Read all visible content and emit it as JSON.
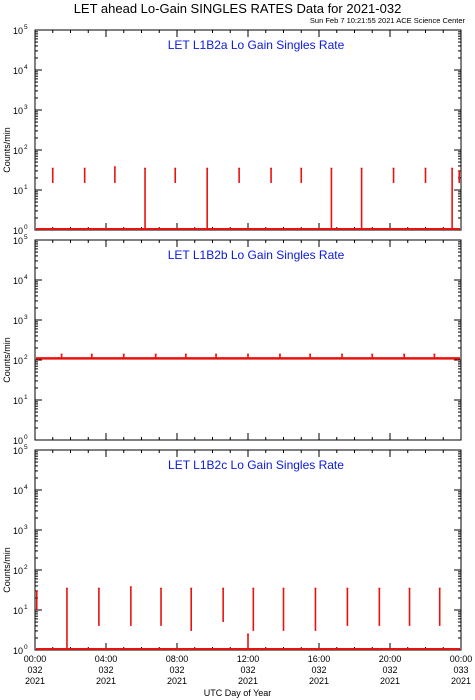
{
  "header": {
    "title": "LET ahead Lo-Gain SINGLES RATES Data for 2021-032",
    "timestamp": "Sun Feb  7 10:21:55 2021 ACE Science Center"
  },
  "colors": {
    "series": "#e8130f",
    "panel_title": "#0a1ad8",
    "axis": "#000000"
  },
  "chart_data": [
    {
      "type": "line",
      "title": "LET L1B2a Lo Gain Singles Rate",
      "ylabel": "Counts/min",
      "yscale": "log",
      "ylim": [
        1,
        100000
      ],
      "xlim": [
        0,
        24
      ],
      "baseline": 1,
      "plateau_level": 1,
      "spikes": [
        {
          "x": 1.0,
          "top": 35,
          "bottom": 15
        },
        {
          "x": 2.8,
          "top": 35,
          "bottom": 15
        },
        {
          "x": 4.5,
          "top": 38,
          "bottom": 15
        },
        {
          "x": 6.2,
          "top": 35,
          "bottom": 1
        },
        {
          "x": 7.9,
          "top": 35,
          "bottom": 15
        },
        {
          "x": 9.7,
          "top": 35,
          "bottom": 1
        },
        {
          "x": 11.5,
          "top": 35,
          "bottom": 15
        },
        {
          "x": 13.3,
          "top": 35,
          "bottom": 15
        },
        {
          "x": 15.0,
          "top": 35,
          "bottom": 15
        },
        {
          "x": 16.7,
          "top": 35,
          "bottom": 1
        },
        {
          "x": 18.4,
          "top": 35,
          "bottom": 1
        },
        {
          "x": 20.2,
          "top": 35,
          "bottom": 15
        },
        {
          "x": 22.0,
          "top": 35,
          "bottom": 15
        },
        {
          "x": 23.5,
          "top": 35,
          "bottom": 1
        },
        {
          "x": 23.9,
          "top": 30,
          "bottom": 15
        }
      ]
    },
    {
      "type": "line",
      "title": "LET L1B2b Lo Gain Singles Rate",
      "ylabel": "Counts/min",
      "yscale": "log",
      "ylim": [
        1,
        100000
      ],
      "xlim": [
        0,
        24
      ],
      "baseline": 110,
      "plateau_level": 110,
      "spikes": [
        {
          "x": 1.5,
          "top": 140,
          "bottom": 110
        },
        {
          "x": 3.2,
          "top": 140,
          "bottom": 110
        },
        {
          "x": 5.0,
          "top": 140,
          "bottom": 110
        },
        {
          "x": 6.8,
          "top": 140,
          "bottom": 110
        },
        {
          "x": 8.5,
          "top": 140,
          "bottom": 110
        },
        {
          "x": 10.2,
          "top": 140,
          "bottom": 110
        },
        {
          "x": 12.0,
          "top": 140,
          "bottom": 110
        },
        {
          "x": 13.8,
          "top": 140,
          "bottom": 110
        },
        {
          "x": 15.5,
          "top": 140,
          "bottom": 110
        },
        {
          "x": 17.3,
          "top": 140,
          "bottom": 110
        },
        {
          "x": 19.0,
          "top": 140,
          "bottom": 110
        },
        {
          "x": 20.8,
          "top": 140,
          "bottom": 110
        },
        {
          "x": 22.5,
          "top": 140,
          "bottom": 110
        }
      ]
    },
    {
      "type": "line",
      "title": "LET L1B2c Lo Gain Singles Rate",
      "ylabel": "Counts/min",
      "yscale": "log",
      "ylim": [
        1,
        100000
      ],
      "xlim": [
        0,
        24
      ],
      "baseline": 1,
      "plateau_level": 1,
      "spikes": [
        {
          "x": 0.1,
          "top": 30,
          "bottom": 10
        },
        {
          "x": 1.8,
          "top": 35,
          "bottom": 1
        },
        {
          "x": 3.6,
          "top": 35,
          "bottom": 4
        },
        {
          "x": 5.4,
          "top": 38,
          "bottom": 4
        },
        {
          "x": 7.1,
          "top": 35,
          "bottom": 4
        },
        {
          "x": 8.8,
          "top": 35,
          "bottom": 3
        },
        {
          "x": 10.6,
          "top": 35,
          "bottom": 5
        },
        {
          "x": 12.0,
          "top": 2.5,
          "bottom": 1
        },
        {
          "x": 12.3,
          "top": 35,
          "bottom": 3
        },
        {
          "x": 14.0,
          "top": 35,
          "bottom": 3
        },
        {
          "x": 15.8,
          "top": 35,
          "bottom": 3
        },
        {
          "x": 17.6,
          "top": 35,
          "bottom": 4
        },
        {
          "x": 19.4,
          "top": 35,
          "bottom": 4
        },
        {
          "x": 21.1,
          "top": 35,
          "bottom": 4
        },
        {
          "x": 22.8,
          "top": 35,
          "bottom": 4
        }
      ]
    }
  ],
  "y_ticks": [
    {
      "base": "10",
      "exp": "0",
      "value": 1
    },
    {
      "base": "10",
      "exp": "1",
      "value": 10
    },
    {
      "base": "10",
      "exp": "2",
      "value": 100
    },
    {
      "base": "10",
      "exp": "3",
      "value": 1000
    },
    {
      "base": "10",
      "exp": "4",
      "value": 10000
    },
    {
      "base": "10",
      "exp": "5",
      "value": 100000
    }
  ],
  "x_ticks": [
    {
      "value": 0,
      "time": "00:00",
      "doy": "032",
      "year": "2021"
    },
    {
      "value": 4,
      "time": "04:00",
      "doy": "032",
      "year": "2021"
    },
    {
      "value": 8,
      "time": "08:00",
      "doy": "032",
      "year": "2021"
    },
    {
      "value": 12,
      "time": "12:00",
      "doy": "032",
      "year": "2021"
    },
    {
      "value": 16,
      "time": "16:00",
      "doy": "032",
      "year": "2021"
    },
    {
      "value": 20,
      "time": "20:00",
      "doy": "032",
      "year": "2021"
    },
    {
      "value": 24,
      "time": "00:00",
      "doy": "033",
      "year": "2021"
    }
  ],
  "xlabel": "UTC Day of Year"
}
